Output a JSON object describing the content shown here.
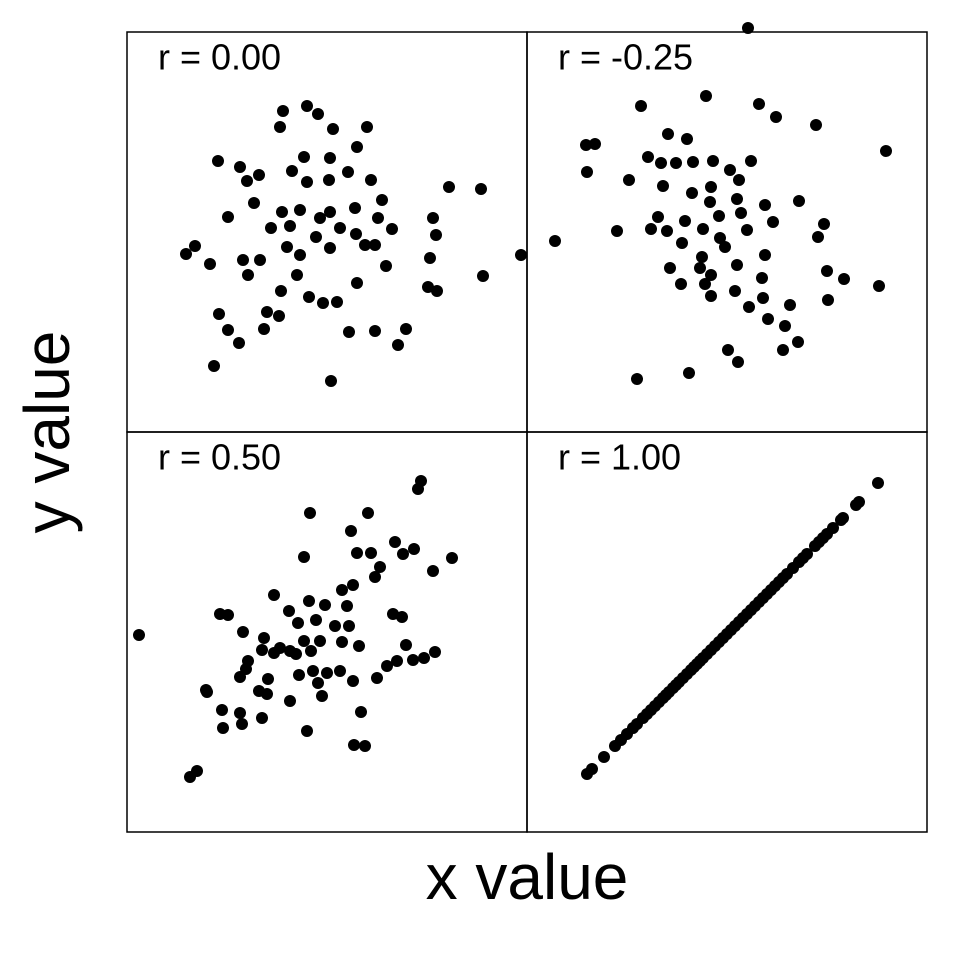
{
  "xlabel": "x value",
  "ylabel": "y value",
  "chart_data": [
    {
      "type": "scatter",
      "title": "r = 0.00",
      "color": "#000000",
      "xlim": [
        0,
        100
      ],
      "ylim": [
        0,
        100
      ],
      "x": [
        39,
        45,
        47.75,
        38.25,
        51.5,
        60,
        22.75,
        28.25,
        33,
        30,
        44.25,
        50.75,
        57.5,
        41.25,
        45,
        50.5,
        55.25,
        61,
        80.5,
        88.5,
        25.25,
        31.75,
        38.75,
        43.25,
        48.25,
        50.75,
        57,
        63.75,
        62.75,
        76.5,
        36,
        40.75,
        47.25,
        53.25,
        57.25,
        66.25,
        77.25,
        14.75,
        17,
        20.75,
        29,
        33.25,
        40,
        43.25,
        50.75,
        59.5,
        62,
        98.5,
        75.75,
        89,
        64.75,
        30.25,
        42.5,
        38.5,
        45.5,
        49,
        52.5,
        57.5,
        75.25,
        77.5,
        23,
        35,
        38,
        25.25,
        28,
        34.25,
        55.5,
        62,
        69.75,
        67.75,
        21.75,
        51
      ],
      "y": [
        80.25,
        81.5,
        79.5,
        76.25,
        75.75,
        76.25,
        67.75,
        66.25,
        64.25,
        62.75,
        68.75,
        68.5,
        71.25,
        65.25,
        62.5,
        63,
        65,
        63,
        61.25,
        60.75,
        53.75,
        57.25,
        55,
        55.5,
        53.5,
        55,
        56,
        58,
        53.5,
        53.5,
        51,
        51.5,
        48.75,
        51,
        49.5,
        50.75,
        49.25,
        44.5,
        46.5,
        42,
        43,
        43,
        46.25,
        44.25,
        46,
        46.75,
        46.75,
        44.25,
        43.5,
        39,
        41.5,
        39.25,
        39.25,
        35.25,
        33.75,
        32.25,
        32.5,
        37.25,
        36.25,
        35.25,
        29.5,
        30,
        29,
        25.5,
        22.25,
        25.75,
        25,
        25.25,
        25.75,
        21.75,
        16.5,
        12.75
      ]
    },
    {
      "type": "scatter",
      "title": "r = -0.25",
      "color": "#000000",
      "xlim": [
        0,
        100
      ],
      "ylim": [
        0,
        100
      ],
      "x": [
        55.25,
        28.5,
        44.75,
        58,
        62.25,
        72.25,
        89.75,
        14.75,
        17,
        35.25,
        40,
        15,
        25.5,
        30.25,
        33.5,
        37.25,
        41.5,
        46.5,
        50.75,
        56,
        34,
        41.25,
        46,
        53,
        45.75,
        52.5,
        59.5,
        68,
        32.75,
        39.5,
        48,
        53.5,
        61.5,
        22.5,
        31,
        35,
        38.75,
        44,
        48.25,
        55,
        74.25,
        72.75,
        7,
        35.75,
        43.75,
        49.5,
        59.5,
        38.5,
        44.5,
        52.5,
        58.75,
        75,
        79.25,
        88,
        46,
        52,
        59,
        75.25,
        55.5,
        65.75,
        60.25,
        64.5,
        64,
        67.75,
        50.25,
        52.75,
        40.5,
        27.5,
        46,
        43.25
      ],
      "y": [
        101,
        81.5,
        84,
        82,
        78.75,
        76.75,
        70.25,
        71.75,
        72,
        74.5,
        73.25,
        65,
        63,
        68.75,
        67.25,
        67.25,
        67.5,
        67.75,
        65.5,
        67.75,
        61.5,
        59.75,
        61.25,
        63,
        57.5,
        58.25,
        56.75,
        57.75,
        53.75,
        52.75,
        54,
        54.75,
        52.5,
        50.25,
        50.75,
        50.25,
        47.25,
        50.75,
        48.5,
        50.5,
        52,
        48.75,
        47.75,
        41,
        43.75,
        46.25,
        44.25,
        37,
        37,
        41.75,
        38.5,
        40.25,
        38.25,
        36.5,
        34,
        35.25,
        33.5,
        33,
        31.25,
        31.75,
        28.25,
        26.5,
        20.5,
        22.5,
        20.5,
        17.5,
        14.75,
        13.25,
        39.25,
        41
      ]
    },
    {
      "type": "scatter",
      "title": "r = 0.50",
      "color": "#000000",
      "xlim": [
        0,
        100
      ],
      "ylim": [
        0,
        100
      ],
      "x": [
        73.5,
        72.75,
        45.75,
        56,
        60.25,
        57.5,
        61,
        67,
        71.75,
        69,
        81.25,
        76.5,
        44.25,
        63.25,
        62,
        56.5,
        53.75,
        45.5,
        49.5,
        55,
        23.25,
        25.25,
        36.75,
        40.5,
        42.75,
        47.25,
        52,
        55.5,
        66.5,
        68.75,
        29,
        34.25,
        38.25,
        40.75,
        44.25,
        48.25,
        53.75,
        58,
        69.75,
        67.5,
        77,
        74.25,
        71.5,
        3,
        30.25,
        33.75,
        36.75,
        42.25,
        46,
        46.5,
        53.25,
        29.75,
        28.25,
        35.25,
        43,
        50,
        56.5,
        62.5,
        65,
        19.75,
        33,
        35,
        47.75,
        48.75,
        40.75,
        23.75,
        28.25,
        33.75,
        58.5,
        28.75,
        24,
        45,
        56.75,
        59.5,
        17.5,
        15.75,
        20
      ],
      "y": [
        87.75,
        85.75,
        79.75,
        75.25,
        79.75,
        69.75,
        69.75,
        72.5,
        70.75,
        69.5,
        68.5,
        65.25,
        68.75,
        66.25,
        63.75,
        61.75,
        60.5,
        57.75,
        56.75,
        56.5,
        54.5,
        54.25,
        59.25,
        55.25,
        52.25,
        53,
        51.5,
        51.5,
        54.5,
        53.75,
        50,
        48.5,
        46,
        45.25,
        47.75,
        47.75,
        47.5,
        46.5,
        46.75,
        42.75,
        45,
        43.5,
        43,
        49.25,
        42.75,
        45.5,
        44.75,
        44.5,
        45.25,
        40.25,
        40.25,
        40.75,
        38.75,
        38.25,
        39.25,
        39.75,
        37.75,
        38.5,
        41.5,
        35.5,
        35.25,
        34.5,
        37.25,
        34,
        32.75,
        30.5,
        29.75,
        28.5,
        30,
        27,
        26,
        25.25,
        21.75,
        21.5,
        15.25,
        13.75,
        35
      ]
    },
    {
      "type": "scatter",
      "title": "r = 1.00",
      "color": "#000000",
      "xlim": [
        0,
        100
      ],
      "ylim": [
        0,
        100
      ],
      "x": [
        15,
        16.25,
        19.25,
        22,
        23.5,
        25,
        26.5,
        27.5,
        29,
        30,
        31,
        32,
        33,
        34,
        34.75,
        35.5,
        36.5,
        37.25,
        38,
        39,
        40,
        41,
        41.75,
        42.5,
        43.25,
        44,
        45,
        46,
        47,
        48,
        49,
        50,
        51,
        52,
        53,
        54,
        55,
        56,
        57,
        58,
        59,
        60,
        61,
        62,
        63,
        64,
        65,
        66.5,
        68,
        69,
        70,
        72,
        73,
        74,
        75,
        76.5,
        78.5,
        79,
        82.25,
        83,
        87.75
      ],
      "y": [
        14.5,
        15.75,
        18.75,
        21.5,
        23,
        24.5,
        26,
        27,
        28.5,
        29.5,
        30.5,
        31.5,
        32.5,
        33.5,
        34.25,
        35,
        36,
        36.75,
        37.5,
        38.5,
        39.5,
        40.5,
        41.25,
        42,
        42.75,
        43.5,
        44.5,
        45.5,
        46.5,
        47.5,
        48.5,
        49.5,
        50.5,
        51.5,
        52.5,
        53.5,
        54.5,
        55.5,
        56.5,
        57.5,
        58.5,
        59.5,
        60.5,
        61.5,
        62.5,
        63.5,
        64.5,
        66,
        67.5,
        68.5,
        69.5,
        71.5,
        72.5,
        73.5,
        74.5,
        76,
        78,
        78.5,
        81.75,
        82.5,
        87.25
      ]
    }
  ]
}
